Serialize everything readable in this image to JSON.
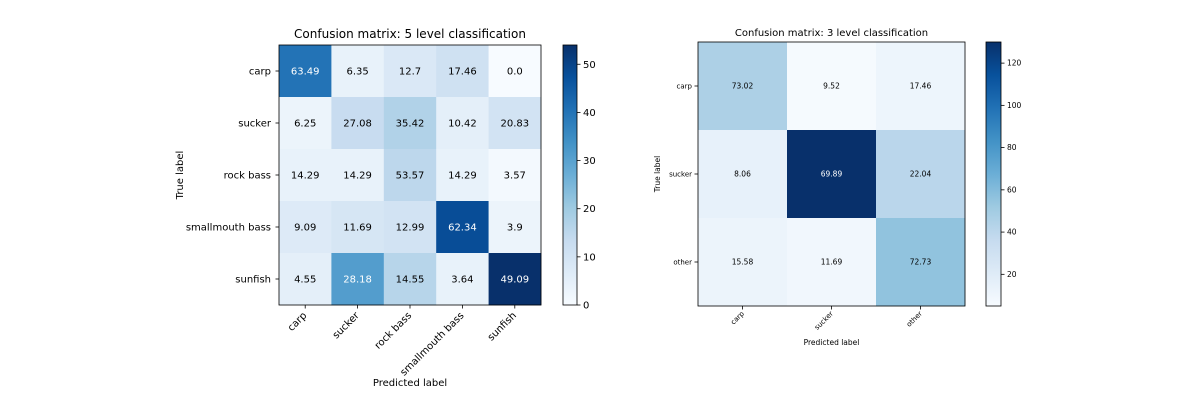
{
  "chart_data": [
    {
      "type": "heatmap",
      "title": "Confusion matrix: 5 level classification",
      "xlabel": "Predicted label",
      "ylabel": "True label",
      "x_categories": [
        "carp",
        "sucker",
        "rock bass",
        "smallmouth bass",
        "sunfish"
      ],
      "y_categories": [
        "carp",
        "sucker",
        "rock bass",
        "smallmouth bass",
        "sunfish"
      ],
      "cell_labels": [
        [
          "63.49",
          "6.35",
          "12.7",
          "17.46",
          "0.0"
        ],
        [
          "6.25",
          "27.08",
          "35.42",
          "10.42",
          "20.83"
        ],
        [
          "14.29",
          "14.29",
          "53.57",
          "14.29",
          "3.57"
        ],
        [
          "9.09",
          "11.69",
          "12.99",
          "62.34",
          "3.9"
        ],
        [
          "4.55",
          "28.18",
          "14.55",
          "3.64",
          "49.09"
        ]
      ],
      "color_values": [
        [
          40,
          4,
          8,
          11,
          0
        ],
        [
          3,
          13,
          17,
          5,
          10
        ],
        [
          4,
          4,
          15,
          4,
          1
        ],
        [
          7,
          9,
          10,
          48,
          3
        ],
        [
          5,
          31,
          16,
          4,
          54
        ]
      ],
      "colorbar": {
        "min": 0,
        "max": 54,
        "ticks": [
          0,
          10,
          20,
          30,
          40,
          50
        ]
      },
      "text_threshold": 27,
      "colormap": "Blues",
      "grid": false
    },
    {
      "type": "heatmap",
      "title": "Confusion matrix: 3 level classification",
      "xlabel": "Predicted label",
      "ylabel": "True label",
      "x_categories": [
        "carp",
        "sucker",
        "other"
      ],
      "y_categories": [
        "carp",
        "sucker",
        "other"
      ],
      "cell_labels": [
        [
          "73.02",
          "9.52",
          "17.46"
        ],
        [
          "8.06",
          "69.89",
          "22.04"
        ],
        [
          "15.58",
          "11.69",
          "72.73"
        ]
      ],
      "color_values": [
        [
          46,
          6,
          11
        ],
        [
          15,
          130,
          41
        ],
        [
          12,
          9,
          56
        ]
      ],
      "colorbar": {
        "min": 5,
        "max": 130,
        "ticks": [
          20,
          40,
          60,
          80,
          100,
          120
        ]
      },
      "text_threshold": 65,
      "colormap": "Blues",
      "grid": false
    }
  ]
}
